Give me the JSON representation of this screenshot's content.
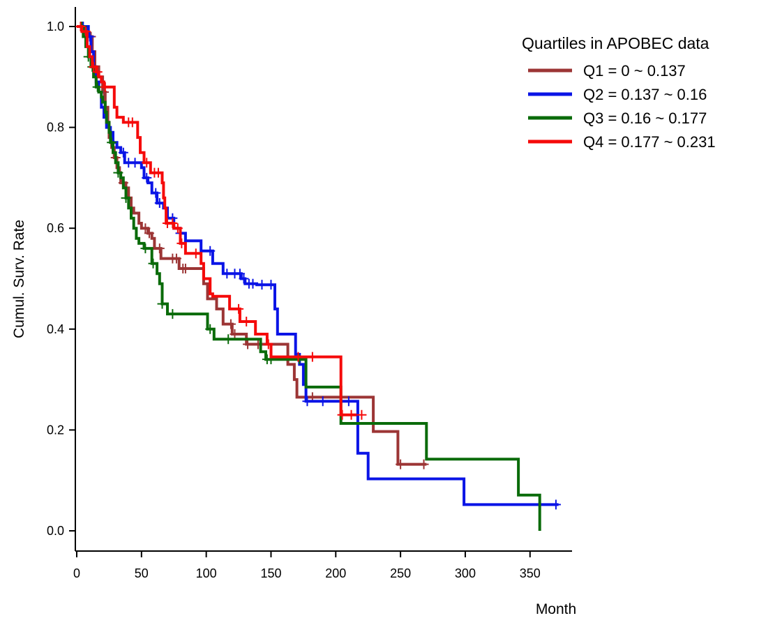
{
  "chart_data": {
    "type": "line",
    "step": true,
    "xlabel": "Month",
    "ylabel": "Cumul. Surv. Rate",
    "xlim": [
      0,
      380
    ],
    "ylim": [
      -0.04,
      1.04
    ],
    "xticks": [
      0,
      50,
      100,
      150,
      200,
      250,
      300,
      350
    ],
    "yticks": [
      0.0,
      0.2,
      0.4,
      0.6,
      0.8,
      1.0
    ],
    "ytick_labels": [
      "0.0",
      "0.2",
      "0.4",
      "0.6",
      "0.8",
      "1.0"
    ],
    "grid": false,
    "legend": {
      "title": "Quartiles in APOBEC data",
      "position": "top-right"
    },
    "series": [
      {
        "name": "Q1 = 0 ~ 0.137",
        "color": "#9c3535",
        "points": [
          [
            0,
            1.0
          ],
          [
            7,
            0.98
          ],
          [
            12,
            0.95
          ],
          [
            14,
            0.92
          ],
          [
            17,
            0.9
          ],
          [
            20,
            0.87
          ],
          [
            22,
            0.84
          ],
          [
            24,
            0.81
          ],
          [
            25,
            0.78
          ],
          [
            27,
            0.76
          ],
          [
            29,
            0.74
          ],
          [
            31,
            0.72
          ],
          [
            33,
            0.71
          ],
          [
            34,
            0.69
          ],
          [
            38,
            0.68
          ],
          [
            40,
            0.66
          ],
          [
            42,
            0.64
          ],
          [
            44,
            0.63
          ],
          [
            48,
            0.61
          ],
          [
            50,
            0.6
          ],
          [
            55,
            0.59
          ],
          [
            58,
            0.58
          ],
          [
            60,
            0.56
          ],
          [
            65,
            0.54
          ],
          [
            79,
            0.52
          ],
          [
            98,
            0.49
          ],
          [
            101,
            0.46
          ],
          [
            108,
            0.44
          ],
          [
            113,
            0.41
          ],
          [
            120,
            0.39
          ],
          [
            131,
            0.37
          ],
          [
            156,
            0.37
          ],
          [
            163,
            0.33
          ],
          [
            168,
            0.3
          ],
          [
            170,
            0.265
          ],
          [
            228,
            0.265
          ],
          [
            229,
            0.197
          ],
          [
            247,
            0.197
          ],
          [
            248,
            0.132
          ],
          [
            270,
            0.132
          ]
        ],
        "censor": [
          3,
          8,
          11,
          21,
          30,
          36,
          53,
          56,
          64,
          74,
          77,
          82,
          84,
          119,
          122,
          132,
          140,
          182,
          250,
          268
        ]
      },
      {
        "name": "Q2 = 0.137 ~ 0.16",
        "color": "#0a14e6",
        "points": [
          [
            0,
            1.0
          ],
          [
            7,
            1.0
          ],
          [
            9,
            0.98
          ],
          [
            11,
            0.95
          ],
          [
            13,
            0.92
          ],
          [
            15,
            0.89
          ],
          [
            17,
            0.87
          ],
          [
            19,
            0.84
          ],
          [
            21,
            0.82
          ],
          [
            23,
            0.8
          ],
          [
            26,
            0.79
          ],
          [
            28,
            0.77
          ],
          [
            31,
            0.76
          ],
          [
            34,
            0.75
          ],
          [
            37,
            0.73
          ],
          [
            48,
            0.73
          ],
          [
            50,
            0.72
          ],
          [
            52,
            0.7
          ],
          [
            55,
            0.69
          ],
          [
            58,
            0.67
          ],
          [
            62,
            0.65
          ],
          [
            67,
            0.64
          ],
          [
            70,
            0.62
          ],
          [
            75,
            0.6
          ],
          [
            80,
            0.59
          ],
          [
            84,
            0.575
          ],
          [
            95,
            0.575
          ],
          [
            96,
            0.555
          ],
          [
            104,
            0.555
          ],
          [
            105,
            0.53
          ],
          [
            113,
            0.51
          ],
          [
            124,
            0.51
          ],
          [
            127,
            0.5
          ],
          [
            130,
            0.49
          ],
          [
            139,
            0.488
          ],
          [
            151,
            0.488
          ],
          [
            153,
            0.44
          ],
          [
            155,
            0.39
          ],
          [
            168,
            0.39
          ],
          [
            169,
            0.35
          ],
          [
            172,
            0.33
          ],
          [
            175,
            0.29
          ],
          [
            177,
            0.257
          ],
          [
            216,
            0.257
          ],
          [
            217,
            0.154
          ],
          [
            224,
            0.154
          ],
          [
            225,
            0.103
          ],
          [
            298,
            0.103
          ],
          [
            299,
            0.052
          ],
          [
            372,
            0.052
          ]
        ],
        "censor": [
          5,
          10,
          36,
          40,
          45,
          54,
          61,
          64,
          74,
          80,
          103,
          116,
          122,
          126,
          129,
          133,
          136,
          143,
          150,
          178,
          190,
          210,
          370
        ]
      },
      {
        "name": "Q3 = 0.16 ~ 0.177",
        "color": "#0a6b0a",
        "points": [
          [
            0,
            1.0
          ],
          [
            5,
            0.98
          ],
          [
            7,
            0.96
          ],
          [
            9,
            0.94
          ],
          [
            11,
            0.92
          ],
          [
            13,
            0.9
          ],
          [
            15,
            0.88
          ],
          [
            17,
            0.87
          ],
          [
            19,
            0.86
          ],
          [
            20,
            0.85
          ],
          [
            22,
            0.83
          ],
          [
            23,
            0.81
          ],
          [
            25,
            0.79
          ],
          [
            26,
            0.77
          ],
          [
            28,
            0.75
          ],
          [
            30,
            0.73
          ],
          [
            32,
            0.71
          ],
          [
            34,
            0.7
          ],
          [
            36,
            0.68
          ],
          [
            38,
            0.66
          ],
          [
            40,
            0.64
          ],
          [
            42,
            0.62
          ],
          [
            44,
            0.6
          ],
          [
            46,
            0.58
          ],
          [
            48,
            0.57
          ],
          [
            52,
            0.56
          ],
          [
            58,
            0.53
          ],
          [
            62,
            0.51
          ],
          [
            64,
            0.49
          ],
          [
            66,
            0.45
          ],
          [
            70,
            0.43
          ],
          [
            98,
            0.43
          ],
          [
            101,
            0.4
          ],
          [
            106,
            0.38
          ],
          [
            138,
            0.38
          ],
          [
            142,
            0.355
          ],
          [
            146,
            0.34
          ],
          [
            176,
            0.34
          ],
          [
            177,
            0.285
          ],
          [
            203,
            0.285
          ],
          [
            204,
            0.213
          ],
          [
            269,
            0.213
          ],
          [
            270,
            0.142
          ],
          [
            340,
            0.142
          ],
          [
            341,
            0.071
          ],
          [
            357,
            0.071
          ],
          [
            357.5,
            0.0
          ]
        ],
        "censor": [
          4,
          9,
          12,
          16,
          27,
          32,
          38,
          53,
          59,
          66,
          74,
          103,
          117,
          147,
          150,
          172
        ]
      },
      {
        "name": "Q4 = 0.177 ~ 0.231",
        "color": "#f50a0a",
        "points": [
          [
            0,
            1.0
          ],
          [
            4,
            0.99
          ],
          [
            8,
            0.96
          ],
          [
            10,
            0.94
          ],
          [
            12,
            0.92
          ],
          [
            15,
            0.91
          ],
          [
            17,
            0.9
          ],
          [
            19,
            0.89
          ],
          [
            21,
            0.88
          ],
          [
            28,
            0.88
          ],
          [
            29,
            0.84
          ],
          [
            31,
            0.82
          ],
          [
            35,
            0.82
          ],
          [
            36,
            0.81
          ],
          [
            46,
            0.81
          ],
          [
            47,
            0.78
          ],
          [
            49,
            0.75
          ],
          [
            52,
            0.73
          ],
          [
            57,
            0.71
          ],
          [
            65,
            0.71
          ],
          [
            66,
            0.69
          ],
          [
            67,
            0.66
          ],
          [
            68,
            0.64
          ],
          [
            69,
            0.61
          ],
          [
            75,
            0.6
          ],
          [
            80,
            0.57
          ],
          [
            84,
            0.55
          ],
          [
            94,
            0.55
          ],
          [
            96,
            0.53
          ],
          [
            98,
            0.5
          ],
          [
            103,
            0.47
          ],
          [
            105,
            0.465
          ],
          [
            115,
            0.465
          ],
          [
            118,
            0.44
          ],
          [
            126,
            0.415
          ],
          [
            136,
            0.415
          ],
          [
            138,
            0.39
          ],
          [
            147,
            0.37
          ],
          [
            150,
            0.345
          ],
          [
            203,
            0.345
          ],
          [
            204,
            0.23
          ],
          [
            216,
            0.23
          ]
        ],
        "censor": [
          3,
          7,
          13,
          16,
          22,
          40,
          43,
          54,
          60,
          63,
          70,
          74,
          78,
          81,
          92,
          125,
          131,
          148,
          171,
          182,
          205,
          212,
          220
        ]
      }
    ]
  }
}
